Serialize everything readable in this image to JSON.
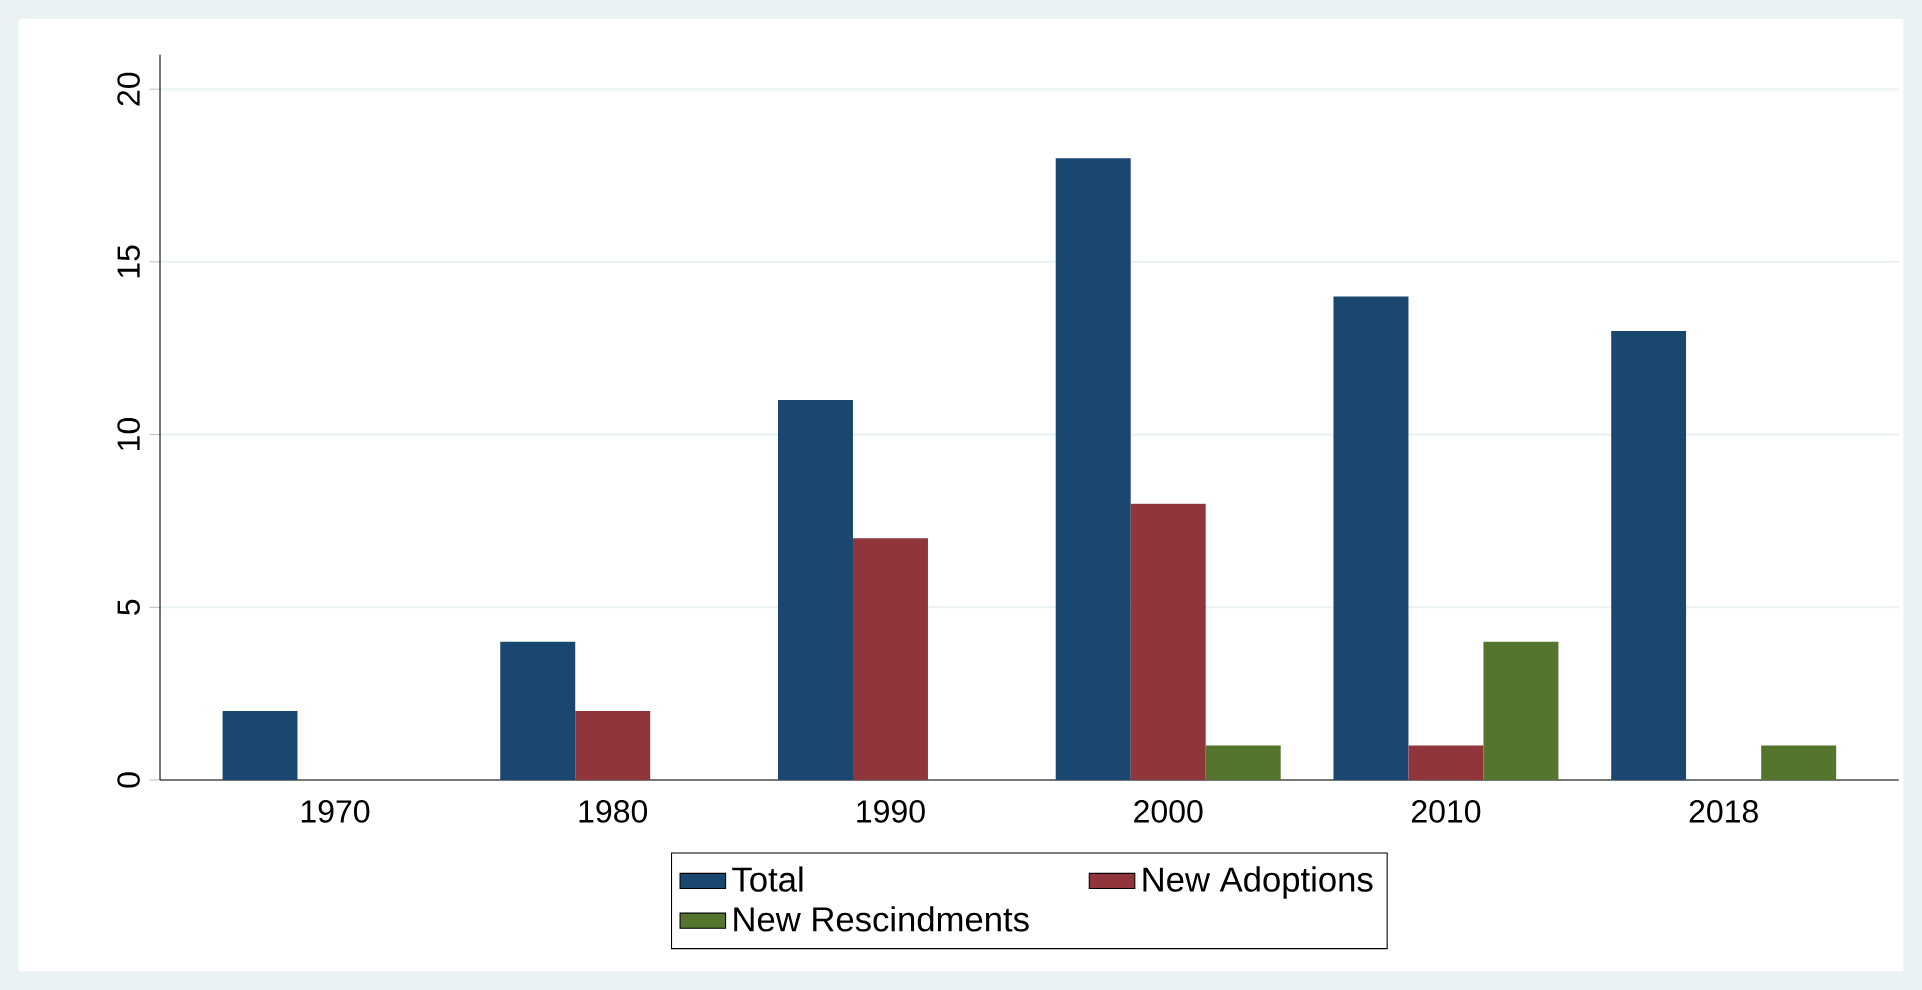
{
  "chart_data": {
    "type": "bar",
    "categories": [
      "1970",
      "1980",
      "1990",
      "2000",
      "2010",
      "2018"
    ],
    "series": [
      {
        "name": "Total",
        "color": "#1a476f",
        "values": [
          2,
          4,
          11,
          18,
          14,
          13
        ]
      },
      {
        "name": "New Adoptions",
        "color": "#90353b",
        "values": [
          0,
          2,
          7,
          8,
          1,
          0
        ]
      },
      {
        "name": "New Rescindments",
        "color": "#55752f",
        "values": [
          0,
          0,
          0,
          1,
          4,
          1
        ]
      }
    ],
    "ylim": [
      0,
      21
    ],
    "yticks": [
      0,
      5,
      10,
      15,
      20
    ],
    "grid": "y",
    "legend": "bottom"
  }
}
